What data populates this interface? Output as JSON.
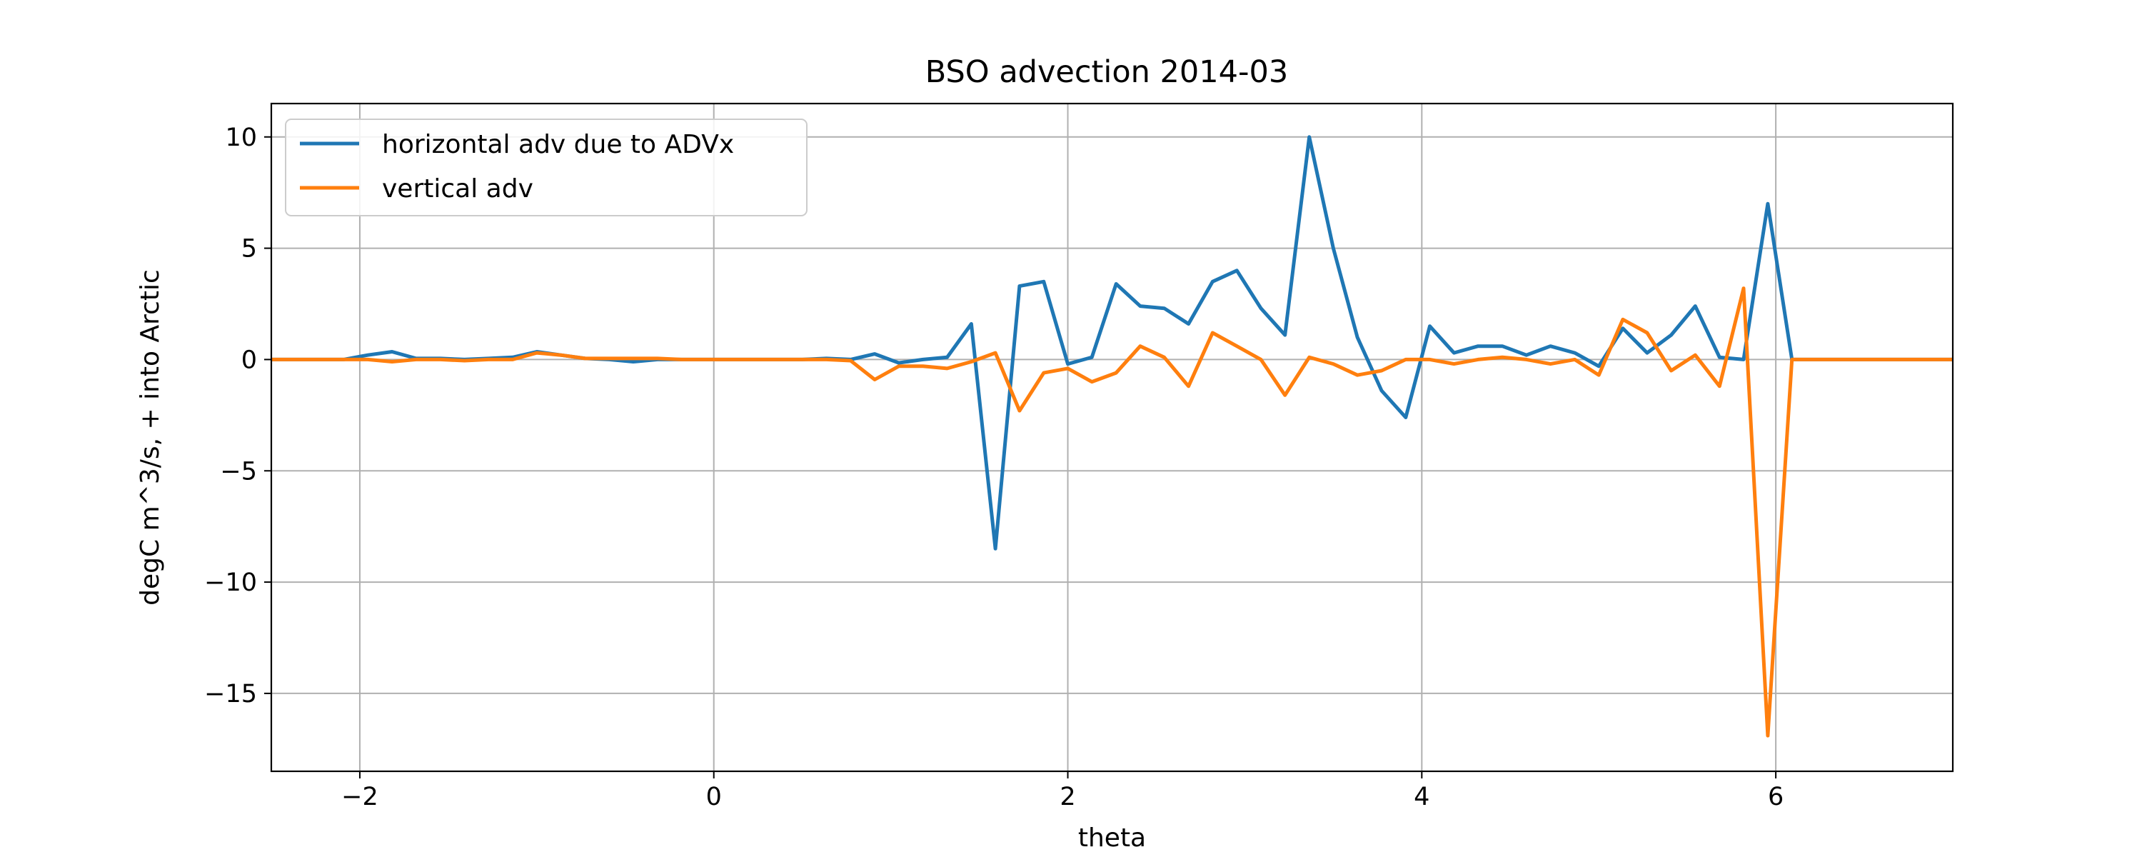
{
  "chart_data": {
    "type": "line",
    "title": "BSO advection 2014-03",
    "xlabel": "theta",
    "ylabel": "degC m^3/s, + into Arctic",
    "xlim": [
      -2.5,
      7.0
    ],
    "ylim": [
      -18.5,
      11.5
    ],
    "xticks": [
      -2,
      0,
      2,
      4,
      6
    ],
    "xtick_labels": [
      "−2",
      "0",
      "2",
      "4",
      "6"
    ],
    "yticks": [
      10,
      5,
      0,
      -5,
      -10,
      -15
    ],
    "ytick_labels": [
      "10",
      "5",
      "0",
      "−5",
      "−10",
      "−15"
    ],
    "grid": true,
    "legend": "upper-left",
    "x": [
      -2.5,
      -2.364,
      -2.227,
      -2.091,
      -1.955,
      -1.818,
      -1.682,
      -1.545,
      -1.409,
      -1.273,
      -1.136,
      -1.0,
      -0.864,
      -0.727,
      -0.591,
      -0.455,
      -0.318,
      -0.182,
      -0.045,
      0.091,
      0.227,
      0.364,
      0.5,
      0.636,
      0.773,
      0.909,
      1.045,
      1.182,
      1.318,
      1.455,
      1.591,
      1.727,
      1.864,
      2.0,
      2.136,
      2.273,
      2.409,
      2.545,
      2.682,
      2.818,
      2.955,
      3.091,
      3.227,
      3.364,
      3.5,
      3.636,
      3.773,
      3.909,
      4.045,
      4.182,
      4.318,
      4.455,
      4.591,
      4.727,
      4.864,
      5.0,
      5.136,
      5.273,
      5.409,
      5.545,
      5.682,
      5.818,
      5.955,
      6.091,
      6.227,
      6.364,
      6.5,
      6.636,
      6.773,
      7.0
    ],
    "series": [
      {
        "name": "horizontal adv due to ADVx",
        "color": "#1f77b4",
        "values": [
          0,
          0,
          0,
          0,
          0.2,
          0.35,
          0.05,
          0.05,
          0,
          0.05,
          0.1,
          0.35,
          0.2,
          0.05,
          0,
          -0.1,
          0,
          0,
          0,
          0,
          0,
          0,
          0,
          0.05,
          0,
          0.25,
          -0.15,
          0,
          0.1,
          1.6,
          -8.5,
          3.3,
          3.5,
          -0.2,
          0.1,
          3.4,
          2.4,
          2.3,
          1.6,
          3.5,
          4.0,
          2.3,
          1.1,
          10.0,
          5.0,
          1.0,
          -1.4,
          -2.6,
          1.5,
          0.3,
          0.6,
          0.6,
          0.2,
          0.6,
          0.3,
          -0.3,
          1.4,
          0.3,
          1.1,
          2.4,
          0.1,
          0.0,
          7.0,
          0,
          0,
          0,
          0,
          0,
          0,
          0
        ]
      },
      {
        "name": "vertical adv",
        "color": "#ff7f0e",
        "values": [
          0,
          0,
          0,
          0,
          0,
          -0.1,
          0,
          0,
          -0.05,
          0,
          0,
          0.3,
          0.2,
          0.05,
          0.05,
          0.05,
          0.05,
          0,
          0,
          0,
          0,
          0,
          0,
          0,
          -0.05,
          -0.9,
          -0.3,
          -0.3,
          -0.4,
          -0.1,
          0.3,
          -2.3,
          -0.6,
          -0.4,
          -1.0,
          -0.6,
          0.6,
          0.1,
          -1.2,
          1.2,
          0.6,
          0.0,
          -1.6,
          0.1,
          -0.2,
          -0.7,
          -0.5,
          0.0,
          0.0,
          -0.2,
          0.0,
          0.1,
          0.0,
          -0.2,
          0.0,
          -0.7,
          1.8,
          1.2,
          -0.5,
          0.2,
          -1.2,
          3.2,
          -16.9,
          0,
          0,
          0,
          0,
          0,
          0,
          0
        ]
      }
    ]
  }
}
